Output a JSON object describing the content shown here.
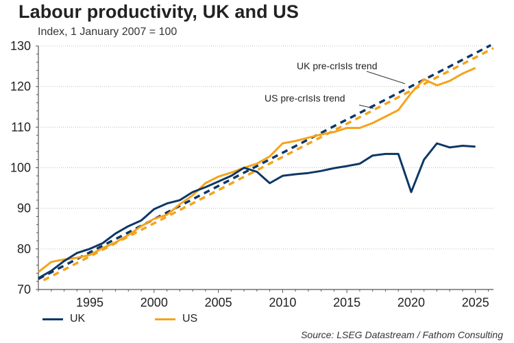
{
  "chart_data": {
    "type": "line",
    "title": "Labour productivity, UK and US",
    "subtitle": "Index, 1 January 2007 = 100",
    "xlabel": "",
    "ylabel": "",
    "xlim": [
      1991,
      2026.4
    ],
    "ylim": [
      70,
      130
    ],
    "x_ticks": [
      1995,
      2000,
      2005,
      2010,
      2015,
      2020,
      2025
    ],
    "y_ticks": [
      70,
      80,
      90,
      100,
      110,
      120,
      130
    ],
    "grid": "horizontal dotted",
    "legend_position": "bottom-left",
    "colors": {
      "UK": "#0d3766",
      "US": "#f5a31a",
      "axis": "#555555",
      "grid": "#bbbbbb"
    },
    "x": [
      1991,
      1992,
      1993,
      1994,
      1995,
      1996,
      1997,
      1998,
      1999,
      2000,
      2001,
      2002,
      2003,
      2004,
      2005,
      2006,
      2007,
      2008,
      2009,
      2010,
      2011,
      2012,
      2013,
      2014,
      2015,
      2016,
      2017,
      2018,
      2019,
      2020,
      2021,
      2022,
      2023,
      2024,
      2025
    ],
    "series": [
      {
        "name": "UK",
        "style": "solid",
        "values": [
          72.8,
          74.6,
          77.0,
          79.0,
          80.0,
          81.4,
          83.8,
          85.6,
          87.0,
          89.8,
          91.2,
          92.0,
          94.0,
          95.2,
          96.6,
          98.0,
          100.0,
          99.0,
          96.2,
          98.0,
          98.4,
          98.7,
          99.2,
          99.9,
          100.4,
          101.0,
          103.0,
          103.4,
          103.4,
          94.0,
          102.0,
          106.0,
          105.0,
          105.4,
          105.2
        ]
      },
      {
        "name": "US",
        "style": "solid",
        "values": [
          74.3,
          76.8,
          77.4,
          77.8,
          78.5,
          80.2,
          81.6,
          83.4,
          85.6,
          87.4,
          88.4,
          91.0,
          93.2,
          96.2,
          97.8,
          98.8,
          100.0,
          101.0,
          102.8,
          106.0,
          106.6,
          107.4,
          108.2,
          108.8,
          109.8,
          109.8,
          111.0,
          112.6,
          114.2,
          118.4,
          121.8,
          120.3,
          121.4,
          123.2,
          124.6
        ]
      },
      {
        "name": "UK pre-crisis trend",
        "style": "dashed",
        "x_range": [
          1991,
          2026.2
        ],
        "values_at_range": [
          72.6,
          130.2
        ]
      },
      {
        "name": "US pre-crisis trend",
        "style": "dashed",
        "x_range": [
          1991.4,
          2026.4
        ],
        "values_at_range": [
          72.6,
          129.8
        ]
      }
    ],
    "annotations": [
      {
        "text": "UK pre-crisis trend",
        "points_to": "UK pre-crisis trend"
      },
      {
        "text": "US pre-crisis trend",
        "points_to": "US pre-crisis trend"
      }
    ],
    "legend": [
      {
        "label": "UK",
        "color": "#0d3766"
      },
      {
        "label": "US",
        "color": "#f5a31a"
      }
    ],
    "source": "Source: LSEG Datastream / Fathom Consulting"
  },
  "annotation_labels": {
    "uk_trend": "UK pre-crIsIs trend",
    "us_trend": "US pre-crIsIs trend"
  }
}
